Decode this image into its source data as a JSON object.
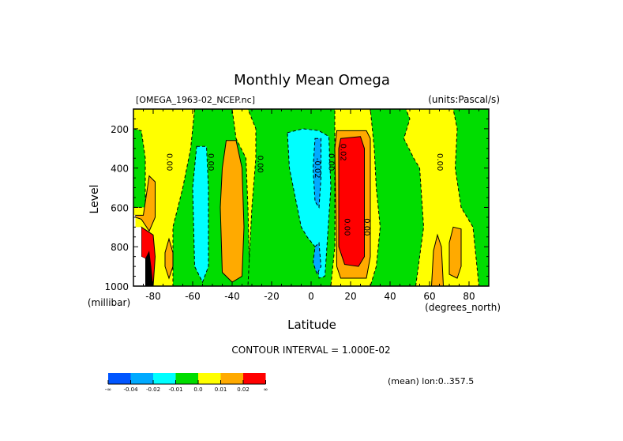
{
  "chart_data": {
    "type": "heatmap",
    "subtype": "filled-contour",
    "title": "Monthly Mean Omega",
    "dataset_label": "[OMEGA_1963-02_NCEP.nc]",
    "units_label": "(units:Pascal/s)",
    "xlabel": "Latitude",
    "x_units": "(degrees_north)",
    "ylabel": "Level",
    "y_units": "(millibar)",
    "xlim": [
      -90,
      90
    ],
    "ylim": [
      1000,
      100
    ],
    "x_ticks": [
      -80,
      -60,
      -40,
      -20,
      0,
      20,
      40,
      60,
      80
    ],
    "y_ticks": [
      200,
      400,
      600,
      800,
      1000
    ],
    "contour_interval_text": "CONTOUR INTERVAL = 1.000E-02",
    "average_note": "(mean) lon:0..357.5",
    "colorbar": {
      "colors": [
        "#0055ff",
        "#00aaff",
        "#00ffff",
        "#00dd00",
        "#ffff00",
        "#ffaa00",
        "#ff0000"
      ],
      "labels": [
        "-∞",
        "-0.04",
        "-0.02",
        "-0.01",
        "0.0",
        "0.01",
        "0.02",
        "∞"
      ]
    },
    "contour_labels": [
      {
        "text": "0.00",
        "lat": -73,
        "level": 370
      },
      {
        "text": "0.00",
        "lat": -52,
        "level": 370
      },
      {
        "text": "0.00",
        "lat": -27,
        "level": 380
      },
      {
        "text": "-0.02",
        "lat": 2,
        "level": 400
      },
      {
        "text": "0.00",
        "lat": 9,
        "level": 370
      },
      {
        "text": "0.02",
        "lat": 15,
        "level": 320
      },
      {
        "text": "0.00",
        "lat": 17,
        "level": 700
      },
      {
        "text": "0.00",
        "lat": 27,
        "level": 700
      },
      {
        "text": "0.00",
        "lat": 64,
        "level": 370
      }
    ],
    "regions": [
      {
        "name": "green-nh-mid",
        "value_class": 3,
        "pts": [
          [
            -59,
            100
          ],
          [
            -40,
            100
          ],
          [
            -38,
            250
          ],
          [
            -33,
            350
          ],
          [
            -32,
            600
          ],
          [
            -31,
            1000
          ],
          [
            -70,
            1000
          ],
          [
            -70,
            700
          ],
          [
            -65,
            500
          ],
          [
            -61,
            300
          ]
        ]
      },
      {
        "name": "green-sh-polar",
        "value_class": 3,
        "pts": [
          [
            -90,
            200
          ],
          [
            -86,
            210
          ],
          [
            -84,
            350
          ],
          [
            -84,
            600
          ],
          [
            -90,
            600
          ]
        ]
      },
      {
        "name": "green-eq",
        "value_class": 3,
        "pts": [
          [
            -32,
            100
          ],
          [
            12,
            100
          ],
          [
            12,
            300
          ],
          [
            12,
            800
          ],
          [
            10,
            1000
          ],
          [
            -32,
            1000
          ],
          [
            -30,
            600
          ],
          [
            -28,
            350
          ],
          [
            -28,
            200
          ]
        ]
      },
      {
        "name": "green-nh",
        "value_class": 3,
        "pts": [
          [
            30,
            100
          ],
          [
            48,
            100
          ],
          [
            50,
            150
          ],
          [
            47,
            250
          ],
          [
            52,
            350
          ],
          [
            55,
            400
          ],
          [
            57,
            700
          ],
          [
            53,
            1000
          ],
          [
            30,
            1000
          ],
          [
            33,
            900
          ],
          [
            35,
            700
          ],
          [
            33,
            500
          ],
          [
            32,
            300
          ]
        ]
      },
      {
        "name": "green-nh-polar",
        "value_class": 3,
        "pts": [
          [
            72,
            100
          ],
          [
            90,
            100
          ],
          [
            90,
            1000
          ],
          [
            85,
            1000
          ],
          [
            82,
            700
          ],
          [
            76,
            600
          ],
          [
            73,
            400
          ],
          [
            74,
            200
          ]
        ]
      },
      {
        "name": "cyan-sh",
        "value_class": 2,
        "pts": [
          [
            -58,
            290
          ],
          [
            -53,
            290
          ],
          [
            -52,
            500
          ],
          [
            -52,
            900
          ],
          [
            -55,
            980
          ],
          [
            -59,
            900
          ],
          [
            -60,
            500
          ]
        ]
      },
      {
        "name": "cyan-eq",
        "value_class": 2,
        "pts": [
          [
            -12,
            220
          ],
          [
            -4,
            200
          ],
          [
            4,
            210
          ],
          [
            9,
            240
          ],
          [
            10,
            500
          ],
          [
            8,
            800
          ],
          [
            7,
            950
          ],
          [
            4,
            960
          ],
          [
            2,
            800
          ],
          [
            -2,
            750
          ],
          [
            -5,
            700
          ],
          [
            -8,
            550
          ],
          [
            -11,
            400
          ]
        ]
      },
      {
        "name": "blue-eq",
        "value_class": 1,
        "pts": [
          [
            2,
            250
          ],
          [
            5,
            250
          ],
          [
            5,
            450
          ],
          [
            4,
            600
          ],
          [
            2,
            570
          ],
          [
            1,
            400
          ]
        ]
      },
      {
        "name": "blue-eq-low",
        "value_class": 1,
        "pts": [
          [
            2,
            800
          ],
          [
            4,
            780
          ],
          [
            5,
            900
          ],
          [
            3,
            940
          ],
          [
            1,
            880
          ]
        ]
      },
      {
        "name": "orange-sh",
        "value_class": 5,
        "pts": [
          [
            -43,
            260
          ],
          [
            -38,
            260
          ],
          [
            -35,
            400
          ],
          [
            -34,
            700
          ],
          [
            -35,
            950
          ],
          [
            -40,
            980
          ],
          [
            -45,
            930
          ],
          [
            -46,
            600
          ],
          [
            -45,
            400
          ]
        ]
      },
      {
        "name": "orange-sh-polar",
        "value_class": 5,
        "pts": [
          [
            -82,
            440
          ],
          [
            -79,
            470
          ],
          [
            -79,
            650
          ],
          [
            -82,
            720
          ],
          [
            -86,
            660
          ],
          [
            -89,
            650
          ],
          [
            -89,
            640
          ],
          [
            -85,
            640
          ]
        ]
      },
      {
        "name": "orange-sh-low",
        "value_class": 5,
        "pts": [
          [
            -72,
            760
          ],
          [
            -70,
            830
          ],
          [
            -70,
            900
          ],
          [
            -72,
            960
          ],
          [
            -74,
            900
          ],
          [
            -74,
            830
          ]
        ]
      },
      {
        "name": "orange-trop",
        "value_class": 5,
        "pts": [
          [
            13,
            210
          ],
          [
            28,
            210
          ],
          [
            30,
            250
          ],
          [
            30,
            850
          ],
          [
            28,
            960
          ],
          [
            15,
            960
          ],
          [
            13,
            900
          ],
          [
            12,
            300
          ]
        ]
      },
      {
        "name": "red-trop",
        "value_class": 6,
        "pts": [
          [
            15,
            250
          ],
          [
            25,
            240
          ],
          [
            27,
            300
          ],
          [
            27,
            850
          ],
          [
            24,
            900
          ],
          [
            17,
            890
          ],
          [
            14,
            800
          ],
          [
            14,
            300
          ]
        ]
      },
      {
        "name": "orange-nh-low1",
        "value_class": 5,
        "pts": [
          [
            64,
            740
          ],
          [
            66,
            800
          ],
          [
            67,
            1000
          ],
          [
            61,
            1000
          ],
          [
            62,
            820
          ]
        ]
      },
      {
        "name": "orange-nh-low2",
        "value_class": 5,
        "pts": [
          [
            72,
            700
          ],
          [
            76,
            710
          ],
          [
            76,
            900
          ],
          [
            74,
            960
          ],
          [
            70,
            940
          ],
          [
            70,
            780
          ]
        ]
      },
      {
        "name": "red-sh-polar",
        "value_class": 6,
        "pts": [
          [
            -86,
            700
          ],
          [
            -80,
            740
          ],
          [
            -79,
            850
          ],
          [
            -80,
            1000
          ],
          [
            -84,
            1000
          ],
          [
            -84,
            860
          ],
          [
            -86,
            850
          ]
        ]
      }
    ]
  },
  "missing_region_note": "white/black masked area near -85, 600-1000"
}
